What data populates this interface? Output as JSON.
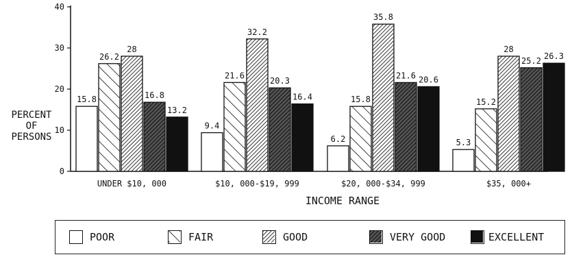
{
  "chart_data": {
    "type": "bar",
    "categories": [
      "UNDER $10, 000",
      "$10, 000-$19, 999",
      "$20, 000-$34, 999",
      "$35, 000+"
    ],
    "series": [
      {
        "name": "POOR",
        "values": [
          15.8,
          9.4,
          6.2,
          5.3
        ],
        "pattern": "empty"
      },
      {
        "name": "FAIR",
        "values": [
          26.2,
          21.6,
          15.8,
          15.2
        ],
        "pattern": "diagonal-sparse"
      },
      {
        "name": "GOOD",
        "values": [
          28,
          32.2,
          35.8,
          28
        ],
        "pattern": "diagonal-dense"
      },
      {
        "name": "VERY GOOD",
        "values": [
          16.8,
          20.3,
          21.6,
          25.2
        ],
        "pattern": "crosshatch-dark"
      },
      {
        "name": "EXCELLENT",
        "values": [
          13.2,
          16.4,
          20.6,
          26.3
        ],
        "pattern": "solid"
      }
    ],
    "data_labels": [
      [
        "15.8",
        "9.4",
        "6.2",
        "5.3"
      ],
      [
        "26.2",
        "21.6",
        "15.8",
        "15.2"
      ],
      [
        "28",
        "32.2",
        "35.8",
        "28"
      ],
      [
        "16.8",
        "20.3",
        "21.6",
        "25.2"
      ],
      [
        "13.2",
        "16.4",
        "20.6",
        "26.3"
      ]
    ],
    "ylabel": [
      "PERCENT",
      "OF",
      "PERSONS"
    ],
    "xlabel": "INCOME RANGE",
    "ylim": [
      0,
      40
    ],
    "yticks": [
      "0",
      "10",
      "20",
      "30",
      "40"
    ],
    "legend_position": "bottom",
    "grid": false,
    "colors": {
      "ink": "#111111",
      "background": "#ffffff"
    }
  }
}
